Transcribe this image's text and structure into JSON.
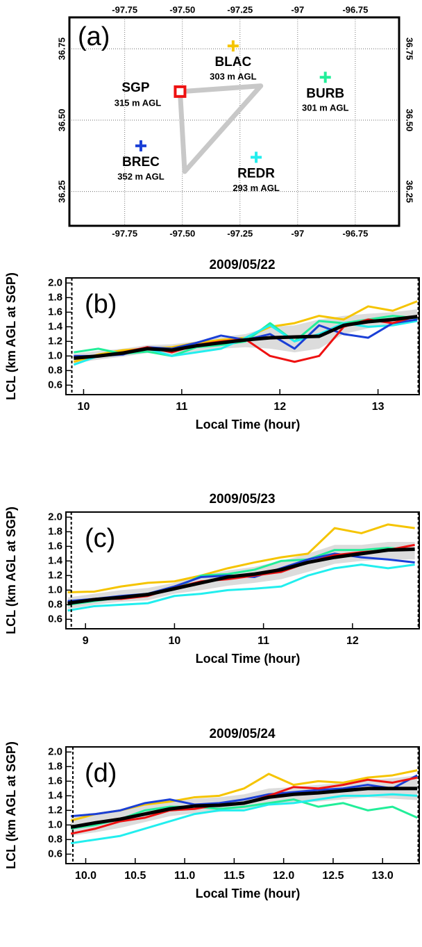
{
  "chart_data": [
    {
      "type": "map",
      "panel_label": "(a)",
      "xlim": [
        -97.99,
        -96.56
      ],
      "ylim": [
        36.13,
        36.86
      ],
      "xticks": [
        {
          "value": -97.75,
          "label": "-97.75"
        },
        {
          "value": -97.5,
          "label": "-97.50"
        },
        {
          "value": -97.25,
          "label": "-97.25"
        },
        -97,
        {
          "value": -96.75,
          "label": "-96.75"
        }
      ],
      "yticks": [
        36.25,
        {
          "value": 36.5,
          "label": "36.50"
        },
        36.75
      ],
      "track": {
        "lon": [
          -97.51,
          -97.16,
          -97.49,
          -97.51
        ],
        "lat": [
          36.6,
          36.62,
          36.32,
          36.6
        ],
        "color": "#c8c8c8"
      },
      "stations": [
        {
          "name": "SGP",
          "label": "315 m AGL",
          "color": "#ee1111",
          "lon": -97.51,
          "lat": 36.6,
          "marker": "square"
        },
        {
          "name": "BLAC",
          "label": "303 m AGL",
          "color": "#f5c400",
          "lon": -97.28,
          "lat": 36.76,
          "marker": "cross"
        },
        {
          "name": "BURB",
          "label": "301 m AGL",
          "color": "#22ee99",
          "lon": -96.88,
          "lat": 36.65,
          "marker": "cross"
        },
        {
          "name": "BREC",
          "label": "352 m AGL",
          "color": "#1a3fd6",
          "lon": -97.68,
          "lat": 36.41,
          "marker": "cross"
        },
        {
          "name": "REDR",
          "label": "293 m AGL",
          "color": "#22eeee",
          "lon": -97.18,
          "lat": 36.37,
          "marker": "cross"
        }
      ]
    },
    {
      "type": "line",
      "title": "2009/05/22",
      "panel_label": "(b)",
      "xlabel": "Local Time (hour)",
      "ylabel": "LCL (km AGL at SGP)",
      "xlim": [
        9.82,
        13.42
      ],
      "ylim": [
        0.47,
        2.07
      ],
      "xticks": [
        10,
        11,
        12,
        13
      ],
      "yticks": [
        0.6,
        0.8,
        {
          "value": 1,
          "label": "1.0"
        },
        1.2,
        1.4,
        1.6,
        1.8,
        {
          "value": 2,
          "label": "2.0"
        }
      ],
      "vlines": [
        9.88,
        13.41
      ],
      "x": [
        9.9,
        10.15,
        10.4,
        10.65,
        10.9,
        11.15,
        11.4,
        11.65,
        11.9,
        12.15,
        12.4,
        12.65,
        12.9,
        13.15,
        13.4
      ],
      "band": {
        "color": "#dcdcdc",
        "lower": [
          0.9,
          0.95,
          0.99,
          1.04,
          1.01,
          1.06,
          1.1,
          1.12,
          1.1,
          1.05,
          1.1,
          1.3,
          1.38,
          1.42,
          1.48
        ],
        "upper": [
          1.03,
          1.07,
          1.1,
          1.15,
          1.16,
          1.2,
          1.26,
          1.3,
          1.4,
          1.42,
          1.5,
          1.55,
          1.58,
          1.6,
          1.64
        ]
      },
      "series": [
        {
          "color": "#f5c400",
          "values": [
            0.92,
            1.02,
            1.08,
            1.1,
            1.12,
            1.18,
            1.22,
            1.25,
            1.4,
            1.45,
            1.55,
            1.5,
            1.68,
            1.62,
            1.75
          ]
        },
        {
          "color": "#22ee99",
          "values": [
            1.05,
            1.1,
            1.03,
            1.06,
            1.0,
            1.12,
            1.15,
            1.2,
            1.45,
            1.2,
            1.48,
            1.45,
            1.5,
            1.55,
            1.52
          ]
        },
        {
          "color": "#22eeee",
          "values": [
            0.88,
            1.0,
            1.04,
            1.1,
            1.0,
            1.05,
            1.1,
            1.25,
            1.42,
            1.2,
            1.3,
            1.45,
            1.4,
            1.42,
            1.48
          ]
        },
        {
          "color": "#1a3fd6",
          "values": [
            1.0,
            1.0,
            1.02,
            1.12,
            1.1,
            1.18,
            1.28,
            1.22,
            1.3,
            1.1,
            1.42,
            1.3,
            1.25,
            1.45,
            1.5
          ]
        },
        {
          "color": "#ee1111",
          "values": [
            0.98,
            1.0,
            1.05,
            1.12,
            1.05,
            1.15,
            1.2,
            1.23,
            1.0,
            0.92,
            1.0,
            1.4,
            1.5,
            1.45,
            1.55
          ]
        },
        {
          "color": "#000000",
          "values": [
            0.97,
            1.0,
            1.04,
            1.1,
            1.08,
            1.14,
            1.18,
            1.22,
            1.25,
            1.26,
            1.27,
            1.42,
            1.47,
            1.5,
            1.54
          ]
        }
      ]
    },
    {
      "type": "line",
      "title": "2009/05/23",
      "panel_label": "(c)",
      "xlabel": "Local Time (hour)",
      "ylabel": "LCL (km AGL at SGP)",
      "xlim": [
        8.78,
        12.75
      ],
      "ylim": [
        0.47,
        2.07
      ],
      "xticks": [
        9,
        10,
        11,
        12
      ],
      "yticks": [
        0.6,
        0.8,
        {
          "value": 1,
          "label": "1.0"
        },
        1.2,
        1.4,
        1.6,
        1.8,
        {
          "value": 2,
          "label": "2.0"
        }
      ],
      "vlines": [
        8.84,
        12.74
      ],
      "x": [
        8.8,
        9.1,
        9.4,
        9.7,
        10.0,
        10.3,
        10.6,
        10.9,
        11.2,
        11.5,
        11.8,
        12.1,
        12.4,
        12.7
      ],
      "band": {
        "color": "#dcdcdc",
        "lower": [
          0.74,
          0.8,
          0.84,
          0.86,
          0.95,
          1.0,
          1.06,
          1.1,
          1.15,
          1.25,
          1.36,
          1.4,
          1.42,
          1.42
        ],
        "upper": [
          0.9,
          0.95,
          1.0,
          1.03,
          1.1,
          1.2,
          1.27,
          1.32,
          1.4,
          1.5,
          1.62,
          1.62,
          1.66,
          1.66
        ]
      },
      "series": [
        {
          "color": "#f5c400",
          "values": [
            0.97,
            0.98,
            1.05,
            1.1,
            1.12,
            1.2,
            1.3,
            1.38,
            1.45,
            1.5,
            1.85,
            1.78,
            1.9,
            1.85
          ]
        },
        {
          "color": "#22ee99",
          "values": [
            0.8,
            0.85,
            0.9,
            0.95,
            1.02,
            1.2,
            1.22,
            1.28,
            1.4,
            1.42,
            1.55,
            1.55,
            1.58,
            1.55
          ]
        },
        {
          "color": "#22eeee",
          "values": [
            0.72,
            0.78,
            0.8,
            0.82,
            0.92,
            0.95,
            1.0,
            1.02,
            1.05,
            1.2,
            1.3,
            1.35,
            1.3,
            1.35
          ]
        },
        {
          "color": "#1a3fd6",
          "values": [
            0.85,
            0.88,
            0.92,
            0.95,
            1.05,
            1.18,
            1.2,
            1.18,
            1.3,
            1.42,
            1.5,
            1.45,
            1.42,
            1.38
          ]
        },
        {
          "color": "#ee1111",
          "values": [
            0.82,
            0.88,
            0.88,
            0.92,
            1.03,
            1.12,
            1.15,
            1.2,
            1.25,
            1.38,
            1.48,
            1.52,
            1.55,
            1.62
          ]
        },
        {
          "color": "#000000",
          "values": [
            0.82,
            0.87,
            0.9,
            0.94,
            1.02,
            1.1,
            1.18,
            1.22,
            1.28,
            1.38,
            1.45,
            1.5,
            1.55,
            1.56
          ]
        }
      ]
    },
    {
      "type": "line",
      "title": "2009/05/24",
      "panel_label": "(d)",
      "xlabel": "Local Time (hour)",
      "ylabel": "LCL (km AGL at SGP)",
      "xlim": [
        9.8,
        13.37
      ],
      "ylim": [
        0.47,
        2.07
      ],
      "xticks": [
        {
          "value": 10,
          "label": "10.0"
        },
        10.5,
        {
          "value": 11,
          "label": "11.0"
        },
        11.5,
        {
          "value": 12,
          "label": "12.0"
        },
        12.5,
        {
          "value": 13,
          "label": "13.0"
        }
      ],
      "yticks": [
        0.6,
        0.8,
        {
          "value": 1,
          "label": "1.0"
        },
        1.2,
        1.4,
        1.6,
        1.8,
        {
          "value": 2,
          "label": "2.0"
        }
      ],
      "vlines": [
        9.87,
        13.36
      ],
      "x": [
        9.85,
        10.1,
        10.35,
        10.6,
        10.85,
        11.1,
        11.35,
        11.6,
        11.85,
        12.1,
        12.35,
        12.6,
        12.85,
        13.1,
        13.35
      ],
      "band": {
        "color": "#dcdcdc",
        "lower": [
          0.85,
          0.9,
          0.96,
          1.04,
          1.12,
          1.16,
          1.18,
          1.22,
          1.28,
          1.3,
          1.32,
          1.35,
          1.38,
          1.36,
          1.34
        ],
        "upper": [
          1.1,
          1.15,
          1.2,
          1.27,
          1.32,
          1.36,
          1.38,
          1.42,
          1.5,
          1.52,
          1.55,
          1.58,
          1.62,
          1.64,
          1.68
        ]
      },
      "series": [
        {
          "color": "#f5c400",
          "values": [
            1.06,
            1.15,
            1.2,
            1.28,
            1.32,
            1.38,
            1.4,
            1.5,
            1.7,
            1.55,
            1.6,
            1.58,
            1.65,
            1.68,
            1.75
          ]
        },
        {
          "color": "#22ee99",
          "values": [
            0.95,
            1.0,
            1.08,
            1.2,
            1.25,
            1.25,
            1.22,
            1.25,
            1.3,
            1.35,
            1.25,
            1.3,
            1.2,
            1.25,
            1.1
          ]
        },
        {
          "color": "#22eeee",
          "values": [
            0.75,
            0.8,
            0.85,
            0.95,
            1.05,
            1.15,
            1.2,
            1.2,
            1.28,
            1.3,
            1.35,
            1.4,
            1.4,
            1.42,
            1.4
          ]
        },
        {
          "color": "#1a3fd6",
          "values": [
            1.12,
            1.15,
            1.2,
            1.3,
            1.35,
            1.28,
            1.3,
            1.35,
            1.42,
            1.45,
            1.48,
            1.5,
            1.55,
            1.5,
            1.68
          ]
        },
        {
          "color": "#ee1111",
          "values": [
            0.88,
            0.95,
            1.05,
            1.1,
            1.2,
            1.22,
            1.28,
            1.3,
            1.4,
            1.52,
            1.5,
            1.55,
            1.62,
            1.58,
            1.65
          ]
        },
        {
          "color": "#000000",
          "values": [
            0.97,
            1.03,
            1.08,
            1.15,
            1.22,
            1.26,
            1.27,
            1.3,
            1.38,
            1.42,
            1.44,
            1.47,
            1.5,
            1.5,
            1.5
          ]
        }
      ]
    }
  ]
}
